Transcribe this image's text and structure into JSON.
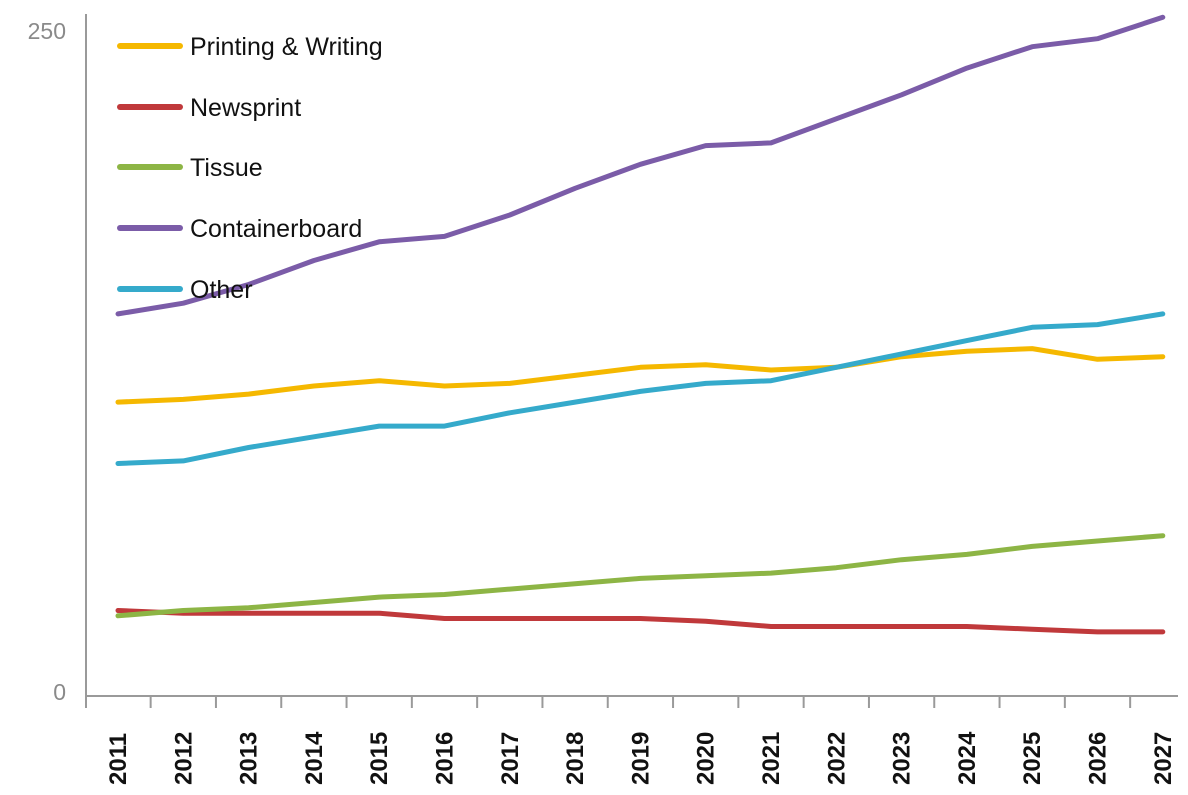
{
  "chart_data": {
    "type": "line",
    "title": "",
    "xlabel": "",
    "ylabel": "",
    "ylim": [
      0,
      250
    ],
    "y_ticks": [
      "0",
      "250"
    ],
    "grid": false,
    "legend_position": "top-left",
    "categories": [
      "2011",
      "2012",
      "2013",
      "2014",
      "2015",
      "2016",
      "2017",
      "2018",
      "2019",
      "2020",
      "2021",
      "2022",
      "2023",
      "2024",
      "2025",
      "2026",
      "2027"
    ],
    "series": [
      {
        "name": "Printing & Writing",
        "color": "#F5B800",
        "values": [
          110,
          111,
          113,
          116,
          118,
          116,
          117,
          120,
          123,
          124,
          122,
          123,
          127,
          129,
          130,
          126,
          127
        ]
      },
      {
        "name": "Newsprint",
        "color": "#C0393B",
        "values": [
          32,
          31,
          31,
          31,
          31,
          29,
          29,
          29,
          29,
          28,
          26,
          26,
          26,
          26,
          25,
          24,
          24
        ]
      },
      {
        "name": "Tissue",
        "color": "#8DB545",
        "values": [
          30,
          32,
          33,
          35,
          37,
          38,
          40,
          42,
          44,
          45,
          46,
          48,
          51,
          53,
          56,
          58,
          60
        ]
      },
      {
        "name": "Containerboard",
        "color": "#7B5CA8",
        "values": [
          143,
          147,
          154,
          163,
          170,
          172,
          180,
          190,
          199,
          206,
          207,
          216,
          225,
          235,
          243,
          246,
          254
        ]
      },
      {
        "name": "Other",
        "color": "#35AACB",
        "values": [
          87,
          88,
          93,
          97,
          101,
          101,
          106,
          110,
          114,
          117,
          118,
          123,
          128,
          133,
          138,
          139,
          143
        ]
      }
    ]
  }
}
